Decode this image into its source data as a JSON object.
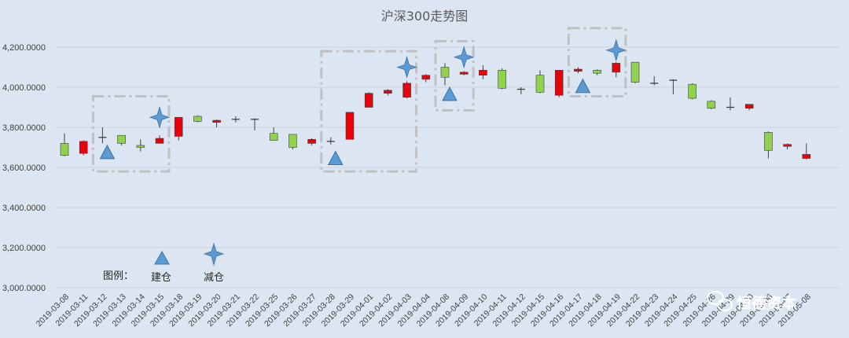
{
  "chart_data": {
    "type": "candlestick",
    "title": "沪深300走势图",
    "ylim": [
      3000,
      4300
    ],
    "yticks": [
      "3,000.0000",
      "3,200.0000",
      "3,400.0000",
      "3,600.0000",
      "3,800.0000",
      "4,000.0000",
      "4,200.0000"
    ],
    "ytick_values": [
      3000,
      3200,
      3400,
      3600,
      3800,
      4000,
      4200
    ],
    "grid": true,
    "up_color": "#e8000b",
    "down_color": "#92d050",
    "marker_color": "#5b9bd5",
    "box_color": "#c0c0c0",
    "candles": [
      {
        "date": "2019-03-08",
        "open": 3720,
        "close": 3660,
        "high": 3770,
        "low": 3655
      },
      {
        "date": "2019-03-11",
        "open": 3670,
        "close": 3730,
        "high": 3735,
        "low": 3660
      },
      {
        "date": "2019-03-12",
        "open": 3750,
        "close": 3750,
        "high": 3800,
        "low": 3720
      },
      {
        "date": "2019-03-13",
        "open": 3760,
        "close": 3720,
        "high": 3760,
        "low": 3710
      },
      {
        "date": "2019-03-14",
        "open": 3710,
        "close": 3700,
        "high": 3740,
        "low": 3680
      },
      {
        "date": "2019-03-15",
        "open": 3720,
        "close": 3745,
        "high": 3760,
        "low": 3720
      },
      {
        "date": "2019-03-18",
        "open": 3755,
        "close": 3850,
        "high": 3850,
        "low": 3735
      },
      {
        "date": "2019-03-19",
        "open": 3855,
        "close": 3830,
        "high": 3860,
        "low": 3825
      },
      {
        "date": "2019-03-20",
        "open": 3825,
        "close": 3835,
        "high": 3840,
        "low": 3800
      },
      {
        "date": "2019-03-21",
        "open": 3840,
        "close": 3840,
        "high": 3855,
        "low": 3825
      },
      {
        "date": "2019-03-22",
        "open": 3840,
        "close": 3835,
        "high": 3845,
        "low": 3785
      },
      {
        "date": "2019-03-25",
        "open": 3770,
        "close": 3735,
        "high": 3800,
        "low": 3735
      },
      {
        "date": "2019-03-26",
        "open": 3765,
        "close": 3700,
        "high": 3765,
        "low": 3690
      },
      {
        "date": "2019-03-27",
        "open": 3720,
        "close": 3740,
        "high": 3745,
        "low": 3710
      },
      {
        "date": "2019-03-28",
        "open": 3730,
        "close": 3730,
        "high": 3750,
        "low": 3715
      },
      {
        "date": "2019-03-29",
        "open": 3740,
        "close": 3875,
        "high": 3875,
        "low": 3740
      },
      {
        "date": "2019-04-01",
        "open": 3900,
        "close": 3970,
        "high": 3975,
        "low": 3900
      },
      {
        "date": "2019-04-02",
        "open": 3970,
        "close": 3985,
        "high": 3990,
        "low": 3960
      },
      {
        "date": "2019-04-03",
        "open": 3950,
        "close": 4020,
        "high": 4030,
        "low": 3945
      },
      {
        "date": "2019-04-04",
        "open": 4040,
        "close": 4060,
        "high": 4065,
        "low": 4025
      },
      {
        "date": "2019-04-08",
        "open": 4100,
        "close": 4050,
        "high": 4120,
        "low": 4010
      },
      {
        "date": "2019-04-09",
        "open": 4065,
        "close": 4075,
        "high": 4080,
        "low": 4060
      },
      {
        "date": "2019-04-10",
        "open": 4060,
        "close": 4085,
        "high": 4110,
        "low": 4040
      },
      {
        "date": "2019-04-11",
        "open": 4085,
        "close": 3995,
        "high": 4095,
        "low": 3990
      },
      {
        "date": "2019-04-12",
        "open": 3990,
        "close": 3985,
        "high": 4000,
        "low": 3965
      },
      {
        "date": "2019-04-15",
        "open": 4060,
        "close": 3975,
        "high": 4085,
        "low": 3970
      },
      {
        "date": "2019-04-16",
        "open": 3960,
        "close": 4085,
        "high": 4085,
        "low": 3950
      },
      {
        "date": "2019-04-17",
        "open": 4080,
        "close": 4090,
        "high": 4100,
        "low": 4070
      },
      {
        "date": "2019-04-18",
        "open": 4085,
        "close": 4070,
        "high": 4090,
        "low": 4060
      },
      {
        "date": "2019-04-19",
        "open": 4075,
        "close": 4120,
        "high": 4125,
        "low": 4050
      },
      {
        "date": "2019-04-22",
        "open": 4125,
        "close": 4025,
        "high": 4125,
        "low": 4020
      },
      {
        "date": "2019-04-23",
        "open": 4020,
        "close": 4015,
        "high": 4055,
        "low": 4010
      },
      {
        "date": "2019-04-24",
        "open": 4030,
        "close": 4035,
        "high": 4040,
        "low": 3965
      },
      {
        "date": "2019-04-25",
        "open": 4015,
        "close": 3945,
        "high": 4020,
        "low": 3940
      },
      {
        "date": "2019-04-26",
        "open": 3930,
        "close": 3895,
        "high": 3935,
        "low": 3890
      },
      {
        "date": "2019-04-29",
        "open": 3895,
        "close": 3900,
        "high": 3950,
        "low": 3885
      },
      {
        "date": "2019-04-30",
        "open": 3895,
        "close": 3915,
        "high": 3915,
        "low": 3885
      },
      {
        "date": "2019-05-06",
        "open": 3775,
        "close": 3685,
        "high": 3780,
        "low": 3645
      },
      {
        "date": "2019-05-07",
        "open": 3705,
        "close": 3715,
        "high": 3720,
        "low": 3690
      },
      {
        "date": "2019-05-08",
        "open": 3645,
        "close": 3665,
        "high": 3720,
        "low": 3640
      }
    ],
    "build_markers": [
      {
        "date": "2019-03-12",
        "y": 3675
      },
      {
        "date": "2019-03-28",
        "y": 3645
      },
      {
        "date": "2019-04-08",
        "y": 3965
      },
      {
        "date": "2019-04-17",
        "y": 4005
      }
    ],
    "reduce_markers": [
      {
        "date": "2019-03-15",
        "y": 3850
      },
      {
        "date": "2019-04-03",
        "y": 4100
      },
      {
        "date": "2019-04-09",
        "y": 4150
      },
      {
        "date": "2019-04-19",
        "y": 4185
      }
    ],
    "highlight_boxes": [
      {
        "from": "2019-03-12",
        "to": "2019-03-15",
        "top": 3955,
        "bottom": 3580
      },
      {
        "from": "2019-03-28",
        "to": "2019-04-03",
        "top": 4180,
        "bottom": 3580
      },
      {
        "from": "2019-04-08",
        "to": "2019-04-09",
        "top": 4230,
        "bottom": 3885
      },
      {
        "from": "2019-04-17",
        "to": "2019-04-19",
        "top": 4295,
        "bottom": 3955
      }
    ],
    "legend": {
      "title": "图例：",
      "build_label": "建仓",
      "reduce_label": "减仓"
    }
  },
  "watermark": {
    "text": "恒德资本"
  }
}
